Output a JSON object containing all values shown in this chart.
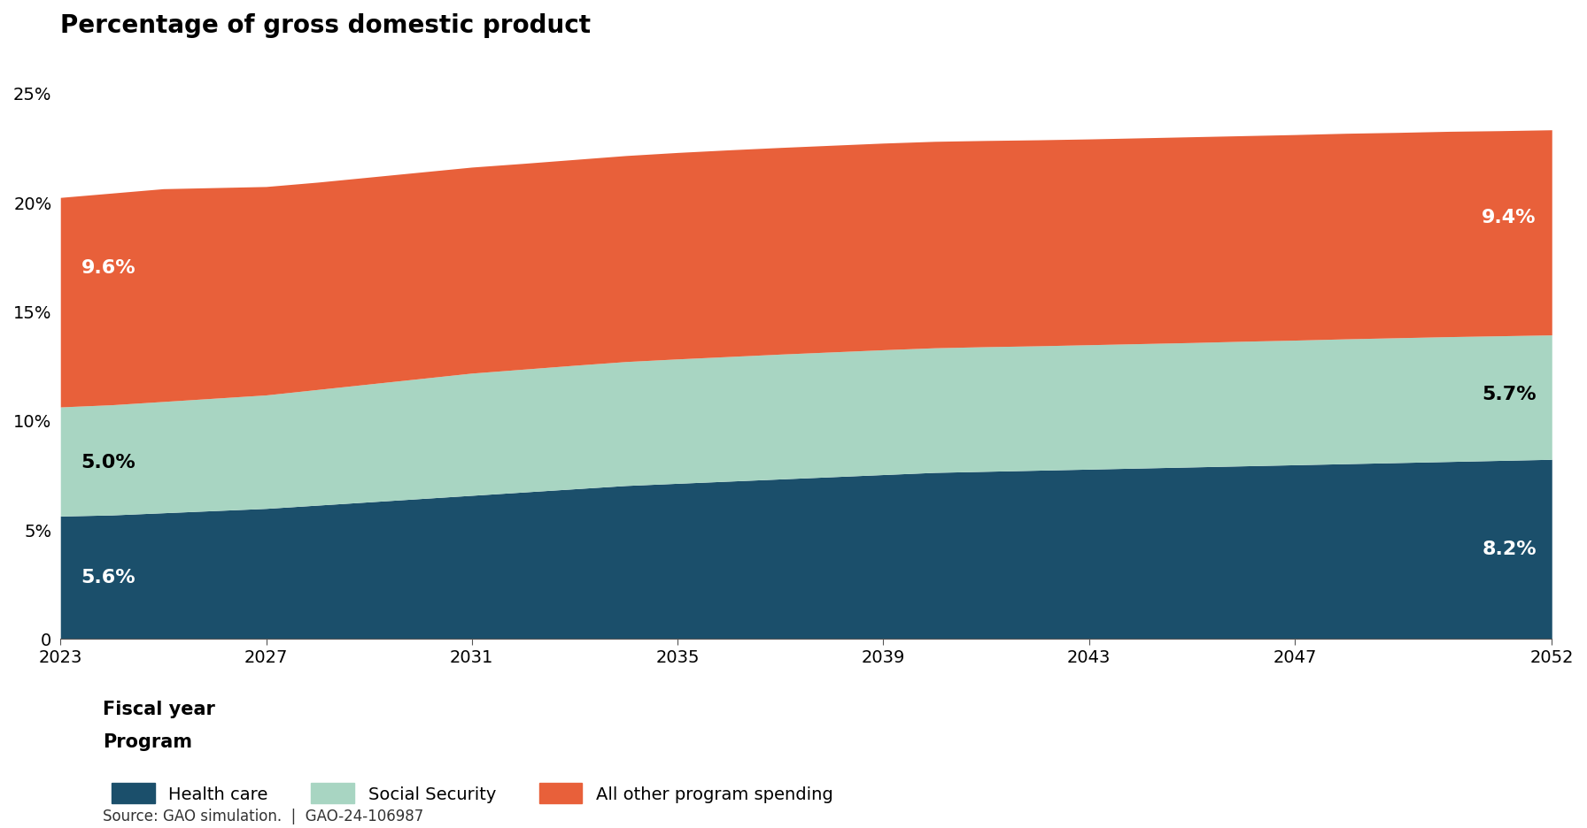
{
  "title": "Percentage of gross domestic product",
  "xlabel": "Fiscal year",
  "legend_title": "Program",
  "legend_items": [
    "Health care",
    "Social Security",
    "All other program spending"
  ],
  "colors": {
    "health_care": "#1b4f6b",
    "social_security": "#a8d5c2",
    "other_spending": "#e8603a"
  },
  "years": [
    2023,
    2024,
    2025,
    2026,
    2027,
    2028,
    2029,
    2030,
    2031,
    2032,
    2033,
    2034,
    2035,
    2036,
    2037,
    2038,
    2039,
    2040,
    2041,
    2042,
    2043,
    2044,
    2045,
    2046,
    2047,
    2048,
    2049,
    2050,
    2051,
    2052
  ],
  "health_care": [
    5.6,
    5.65,
    5.75,
    5.85,
    5.95,
    6.1,
    6.25,
    6.4,
    6.55,
    6.7,
    6.85,
    7.0,
    7.1,
    7.2,
    7.3,
    7.4,
    7.5,
    7.6,
    7.65,
    7.7,
    7.75,
    7.8,
    7.85,
    7.9,
    7.95,
    8.0,
    8.05,
    8.1,
    8.15,
    8.2
  ],
  "social_security": [
    5.0,
    5.05,
    5.1,
    5.15,
    5.2,
    5.3,
    5.4,
    5.5,
    5.6,
    5.63,
    5.66,
    5.68,
    5.7,
    5.71,
    5.72,
    5.72,
    5.72,
    5.71,
    5.71,
    5.7,
    5.7,
    5.7,
    5.7,
    5.71,
    5.71,
    5.72,
    5.72,
    5.72,
    5.71,
    5.7
  ],
  "other_spending": [
    9.6,
    9.7,
    9.75,
    9.65,
    9.55,
    9.5,
    9.48,
    9.46,
    9.44,
    9.43,
    9.43,
    9.44,
    9.46,
    9.47,
    9.47,
    9.47,
    9.47,
    9.46,
    9.45,
    9.44,
    9.43,
    9.43,
    9.43,
    9.42,
    9.42,
    9.42,
    9.41,
    9.41,
    9.4,
    9.4
  ],
  "xticks": [
    2023,
    2027,
    2031,
    2035,
    2039,
    2043,
    2047,
    2052
  ],
  "yticks": [
    0,
    5,
    10,
    15,
    20,
    25
  ],
  "ylim": [
    0,
    27
  ],
  "xlim": [
    2023,
    2052
  ],
  "ann_left_health_y": 2.8,
  "ann_left_social_y": 8.1,
  "ann_left_other_y": 17.0,
  "ann_right_health_y": 4.1,
  "ann_right_social_y": 11.2,
  "ann_right_other_y": 19.3,
  "ann_left_social_text": "5.0%",
  "ann_right_social_text": "5.7%",
  "source_text": "Source: GAO simulation.  |  GAO-24-106987",
  "background_color": "#ffffff",
  "fontsize_title": 20,
  "fontsize_ticks": 14,
  "fontsize_xlabel": 15,
  "fontsize_legend_title": 15,
  "fontsize_annotations": 16,
  "fontsize_source": 12,
  "fontsize_legend": 14
}
